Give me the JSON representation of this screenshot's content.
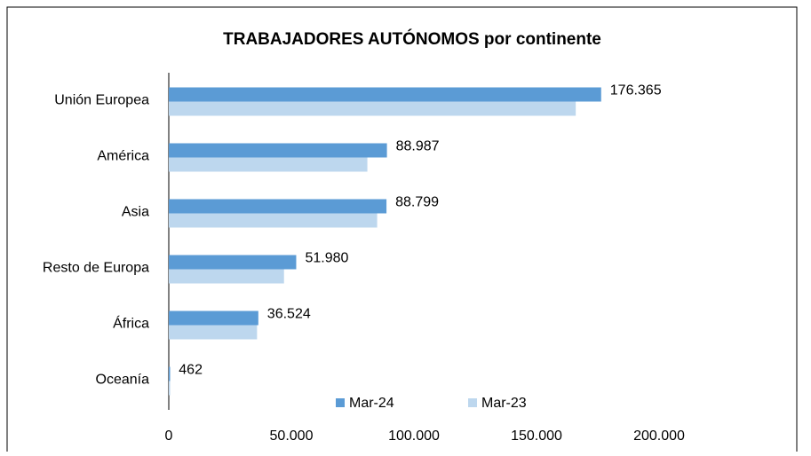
{
  "chart_data": {
    "type": "bar",
    "orientation": "horizontal",
    "title": "TRABAJADORES AUTÓNOMOS por continente",
    "categories": [
      "Unión Europea",
      "América",
      "Asia",
      "Resto de Europa",
      "África",
      "Oceanía"
    ],
    "series": [
      {
        "name": "Mar-24",
        "color": "#5b9bd5",
        "values": [
          176365,
          88987,
          88799,
          51980,
          36524,
          462
        ],
        "value_labels": [
          "176.365",
          "88.987",
          "88.799",
          "51.980",
          "36.524",
          "462"
        ]
      },
      {
        "name": "Mar-23",
        "color": "#bdd7ee",
        "values": [
          166000,
          81000,
          85000,
          47000,
          36000,
          400
        ]
      }
    ],
    "xlim": [
      0,
      200000
    ],
    "xticks": [
      0,
      {
        "value": 50000,
        "label": "50.000"
      },
      {
        "value": 100000,
        "label": "100.000"
      },
      {
        "value": 150000,
        "label": "150.000"
      },
      {
        "value": 200000,
        "label": "200.000"
      }
    ],
    "grid": false,
    "legend": "bottom"
  }
}
